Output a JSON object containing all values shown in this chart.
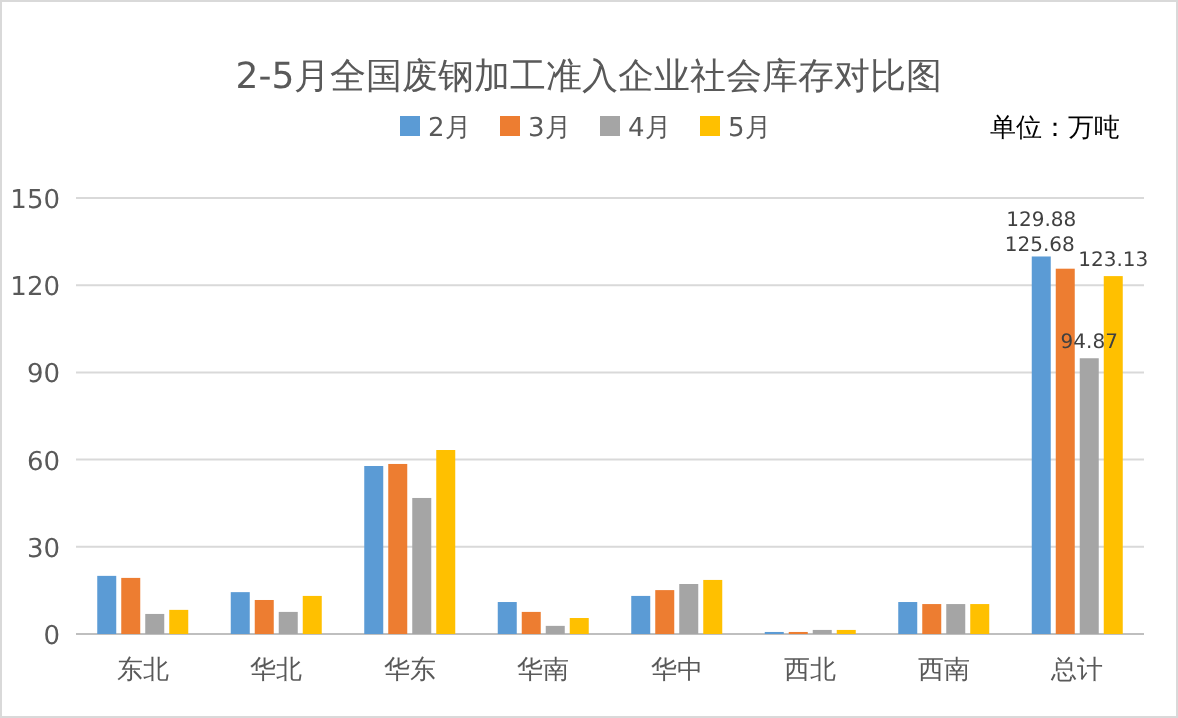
{
  "chart_data": {
    "type": "bar",
    "title": "2-5月全国废钢加工准入企业社会库存对比图",
    "annotations": [
      "单位：万吨"
    ],
    "categories": [
      "东北",
      "华北",
      "华东",
      "华南",
      "华中",
      "西北",
      "西南",
      "总计"
    ],
    "series": [
      {
        "name": "2月",
        "color": "#5b9bd5",
        "values": [
          20.0,
          14.4,
          57.8,
          11.0,
          13.1,
          0.7,
          11.0,
          129.88
        ],
        "value_labels": [
          null,
          null,
          null,
          null,
          null,
          null,
          null,
          "129.88"
        ]
      },
      {
        "name": "3月",
        "color": "#ed7d31",
        "values": [
          19.3,
          11.7,
          58.5,
          7.6,
          15.1,
          0.7,
          10.3,
          125.68
        ],
        "value_labels": [
          null,
          null,
          null,
          null,
          null,
          null,
          null,
          "125.68"
        ]
      },
      {
        "name": "4月",
        "color": "#a5a5a5",
        "values": [
          6.9,
          7.6,
          46.8,
          2.8,
          17.2,
          1.4,
          10.3,
          94.87
        ],
        "value_labels": [
          null,
          null,
          null,
          null,
          null,
          null,
          null,
          "94.87"
        ]
      },
      {
        "name": "5月",
        "color": "#ffc000",
        "values": [
          8.3,
          13.1,
          63.3,
          5.5,
          18.6,
          1.4,
          10.3,
          123.13
        ],
        "value_labels": [
          null,
          null,
          null,
          null,
          null,
          null,
          null,
          "123.13"
        ]
      }
    ],
    "ylim": [
      0,
      150
    ],
    "yticks": [
      0,
      30,
      60,
      90,
      120,
      150
    ],
    "grid": "y",
    "legend": "top"
  }
}
